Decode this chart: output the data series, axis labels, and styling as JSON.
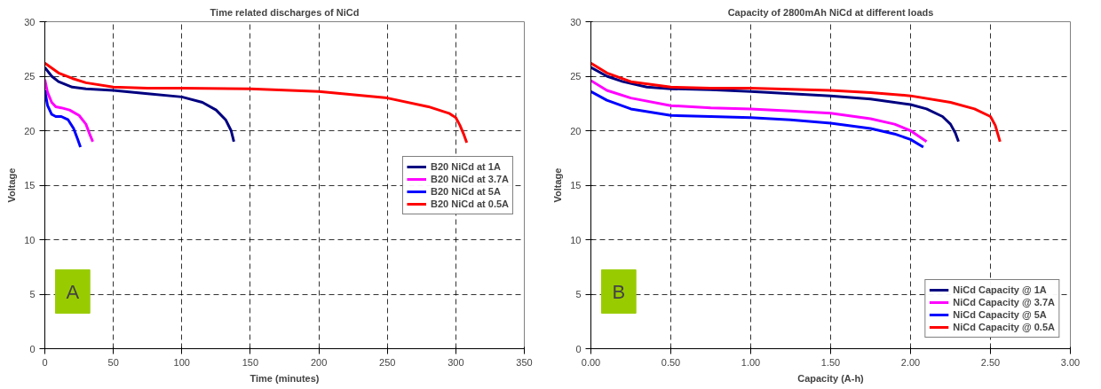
{
  "chart_data": [
    {
      "type": "line",
      "title": "Time related discharges of NiCd",
      "xlabel": "Time (minutes)",
      "ylabel": "Voltage",
      "xlim": [
        0,
        350
      ],
      "ylim": [
        0,
        30
      ],
      "xticks": [
        0,
        50,
        100,
        150,
        200,
        250,
        300,
        350
      ],
      "yticks": [
        0,
        5,
        10,
        15,
        20,
        25,
        30
      ],
      "grid": true,
      "legend": "right",
      "line_style": "solid",
      "marker": "none",
      "annotations": [
        "A"
      ],
      "series": [
        {
          "name": "B20 NiCd at 1A",
          "color": "#000080",
          "x": [
            0,
            5,
            10,
            20,
            30,
            50,
            75,
            100,
            115,
            125,
            132,
            136,
            137,
            138
          ],
          "values": [
            25.8,
            25.0,
            24.5,
            24.0,
            23.85,
            23.7,
            23.4,
            23.1,
            22.6,
            21.9,
            21.0,
            20.0,
            19.5,
            19.0
          ]
        },
        {
          "name": "B20 NiCd at 3.7A",
          "color": "#ff00ff",
          "x": [
            0,
            2,
            5,
            8,
            12,
            18,
            25,
            30,
            33,
            35
          ],
          "values": [
            24.7,
            23.5,
            22.6,
            22.2,
            22.1,
            21.9,
            21.4,
            20.6,
            19.6,
            19.0
          ]
        },
        {
          "name": "B20 NiCd at 5A",
          "color": "#0000ff",
          "x": [
            0,
            2,
            5,
            8,
            12,
            17,
            21,
            24,
            26
          ],
          "values": [
            23.7,
            22.3,
            21.5,
            21.3,
            21.3,
            21.0,
            20.2,
            19.2,
            18.5
          ]
        },
        {
          "name": "B20 NiCd at 0.5A",
          "color": "#ff0000",
          "x": [
            0,
            10,
            20,
            30,
            50,
            75,
            100,
            150,
            200,
            250,
            280,
            295,
            300,
            303,
            306,
            308
          ],
          "values": [
            26.2,
            25.3,
            24.8,
            24.4,
            24.0,
            23.9,
            23.9,
            23.85,
            23.6,
            23.0,
            22.2,
            21.6,
            21.2,
            20.5,
            19.6,
            18.9
          ]
        }
      ]
    },
    {
      "type": "line",
      "title": "Capacity of 2800mAh NiCd at different loads",
      "xlabel": "Capacity (A-h)",
      "ylabel": "Voltage",
      "xlim": [
        0,
        3
      ],
      "ylim": [
        0,
        30
      ],
      "xticks": [
        {
          "value": 0,
          "label": "0.00"
        },
        {
          "value": 0.5,
          "label": "0.50"
        },
        {
          "value": 1,
          "label": "1.00"
        },
        {
          "value": 1.5,
          "label": "1.50"
        },
        {
          "value": 2,
          "label": "2.00"
        },
        {
          "value": 2.5,
          "label": "2.50"
        },
        {
          "value": 3,
          "label": "3.00"
        }
      ],
      "yticks": [
        0,
        5,
        10,
        15,
        20,
        25,
        30
      ],
      "grid": true,
      "legend": "bottom right",
      "line_style": "solid",
      "marker": "none",
      "annotations": [
        "B"
      ],
      "series": [
        {
          "name": "NiCd Capacity @ 1A",
          "color": "#000080",
          "x": [
            0,
            0.1,
            0.2,
            0.35,
            0.5,
            0.75,
            1.0,
            1.25,
            1.5,
            1.75,
            2.0,
            2.1,
            2.2,
            2.25,
            2.28,
            2.3
          ],
          "values": [
            25.8,
            25.0,
            24.5,
            24.0,
            23.85,
            23.75,
            23.6,
            23.4,
            23.2,
            22.9,
            22.4,
            22.0,
            21.3,
            20.6,
            19.8,
            19.0
          ]
        },
        {
          "name": "NiCd Capacity @ 3.7A",
          "color": "#ff00ff",
          "x": [
            0,
            0.1,
            0.25,
            0.5,
            0.75,
            1.0,
            1.25,
            1.5,
            1.75,
            1.9,
            2.0,
            2.1
          ],
          "values": [
            24.6,
            23.7,
            23.0,
            22.3,
            22.1,
            22.0,
            21.8,
            21.6,
            21.1,
            20.6,
            20.0,
            19.0
          ]
        },
        {
          "name": "NiCd Capacity @ 5A",
          "color": "#0000ff",
          "x": [
            0,
            0.1,
            0.25,
            0.5,
            0.75,
            1.0,
            1.25,
            1.5,
            1.75,
            1.9,
            2.0,
            2.08
          ],
          "values": [
            23.6,
            22.8,
            22.0,
            21.4,
            21.3,
            21.2,
            21.0,
            20.7,
            20.2,
            19.7,
            19.2,
            18.5
          ]
        },
        {
          "name": "NiCd Capacity @ 0.5A",
          "color": "#ff0000",
          "x": [
            0,
            0.1,
            0.25,
            0.5,
            0.75,
            1.0,
            1.25,
            1.5,
            1.75,
            2.0,
            2.25,
            2.4,
            2.5,
            2.53,
            2.56
          ],
          "values": [
            26.2,
            25.3,
            24.5,
            24.0,
            23.9,
            23.9,
            23.8,
            23.7,
            23.5,
            23.2,
            22.6,
            22.0,
            21.3,
            20.5,
            19.0
          ]
        }
      ]
    }
  ]
}
